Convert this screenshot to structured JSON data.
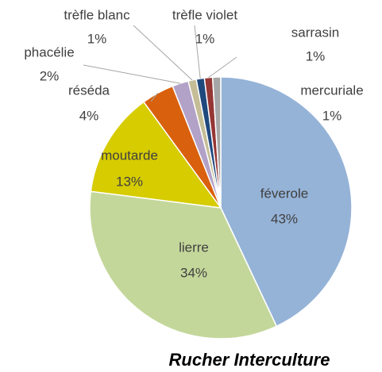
{
  "chart_data": {
    "type": "pie",
    "title": "Rucher Interculture",
    "categories": [
      "féverole",
      "lierre",
      "moutarde",
      "réséda",
      "phacélie",
      "trèfle blanc",
      "trèfle violet",
      "sarrasin",
      "mercuriale"
    ],
    "values": [
      43,
      34,
      13,
      4,
      2,
      1,
      1,
      1,
      1
    ],
    "value_labels": [
      "43%",
      "34%",
      "13%",
      "4%",
      "2%",
      "1%",
      "1%",
      "1%",
      "1%"
    ],
    "colors": [
      "#95b3d7",
      "#c4d79b",
      "#d6cc00",
      "#d9600c",
      "#b3a2c7",
      "#c4bd97",
      "#1f497d",
      "#953735",
      "#a6a6a6"
    ]
  }
}
